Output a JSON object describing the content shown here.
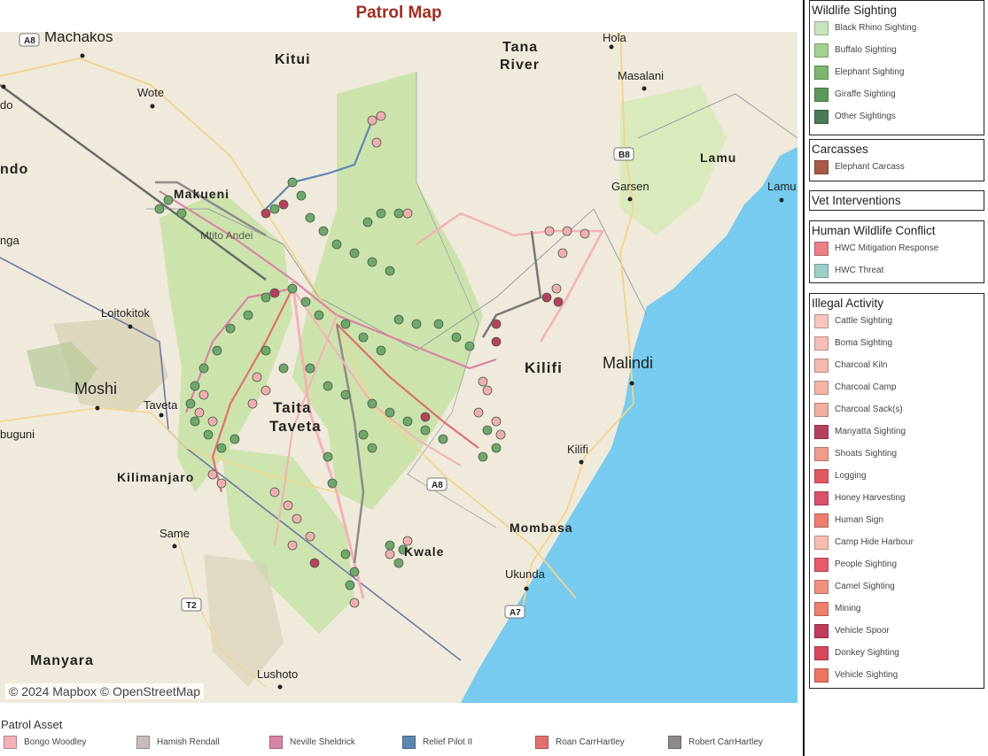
{
  "title": "Patrol Map",
  "attribution": "© 2024 Mapbox © OpenStreetMap",
  "map_labels": [
    {
      "text": "Machakos",
      "kind": "town"
    },
    {
      "text": "Kitui",
      "kind": "region"
    },
    {
      "text": "Tana",
      "kind": "region"
    },
    {
      "text": "River",
      "kind": "region"
    },
    {
      "text": "Hola",
      "kind": "town"
    },
    {
      "text": "Masalani",
      "kind": "town"
    },
    {
      "text": "Wote",
      "kind": "town"
    },
    {
      "text": "ndo",
      "kind": "region"
    },
    {
      "text": "do",
      "kind": "town"
    },
    {
      "text": "Makueni",
      "kind": "region"
    },
    {
      "text": "Mtito Andei",
      "kind": "town"
    },
    {
      "text": "Garsen",
      "kind": "town"
    },
    {
      "text": "Lamu",
      "kind": "region"
    },
    {
      "text": "Lamu",
      "kind": "town"
    },
    {
      "text": "nga",
      "kind": "town"
    },
    {
      "text": "Loitokitok",
      "kind": "town"
    },
    {
      "text": "Kilifi",
      "kind": "region"
    },
    {
      "text": "Malindi",
      "kind": "city"
    },
    {
      "text": "Moshi",
      "kind": "city"
    },
    {
      "text": "Taveta",
      "kind": "town"
    },
    {
      "text": "Taita",
      "kind": "region"
    },
    {
      "text": "Taveta",
      "kind": "region"
    },
    {
      "text": "buguni",
      "kind": "town"
    },
    {
      "text": "Kilimanjaro",
      "kind": "region"
    },
    {
      "text": "Kilifi",
      "kind": "town"
    },
    {
      "text": "Same",
      "kind": "town"
    },
    {
      "text": "Mombasa",
      "kind": "region"
    },
    {
      "text": "Kwale",
      "kind": "region"
    },
    {
      "text": "Ukunda",
      "kind": "town"
    },
    {
      "text": "Manyara",
      "kind": "region"
    },
    {
      "text": "Lushoto",
      "kind": "town"
    }
  ],
  "road_shields": [
    "A8",
    "B8",
    "A8",
    "T2",
    "A7"
  ],
  "legend": {
    "wildlife": {
      "title": "Wildlife Sighting",
      "items": [
        {
          "label": "Black Rhino Sighting",
          "color": "#c6e6bf"
        },
        {
          "label": "Buffalo Sighting",
          "color": "#a3d08f"
        },
        {
          "label": "Elephant Sighting",
          "color": "#7fb56c"
        },
        {
          "label": "Giraffe Sighting",
          "color": "#5c9a5c"
        },
        {
          "label": "Other Sightings",
          "color": "#4a7a58"
        }
      ]
    },
    "carcasses": {
      "title": "Carcasses",
      "items": [
        {
          "label": "Elephant Carcass",
          "color": "#a85a47"
        }
      ]
    },
    "vet": {
      "title": "Vet Interventions",
      "items": []
    },
    "hwc": {
      "title": "Human Wildlife Conflict",
      "items": [
        {
          "label": "HWC Mitigation Response",
          "color": "#ec7f86"
        },
        {
          "label": "HWC Threat",
          "color": "#9ccfc8"
        }
      ]
    },
    "illegal": {
      "title": "Illegal Activity",
      "items": [
        {
          "label": "Cattle Sighting",
          "color": "#f7c5bf"
        },
        {
          "label": "Boma Sighting",
          "color": "#f5bfb6"
        },
        {
          "label": "Charcoal Kiln",
          "color": "#f4b8ae"
        },
        {
          "label": "Charcoal Camp",
          "color": "#f3b4a6"
        },
        {
          "label": "Charcoal Sack(s)",
          "color": "#f2ae9e"
        },
        {
          "label": "Manyatta Sighting",
          "color": "#b8405e"
        },
        {
          "label": "Shoats Sighting",
          "color": "#f09a8c"
        },
        {
          "label": "Logging",
          "color": "#e05a66"
        },
        {
          "label": "Honey Harvesting",
          "color": "#d9506a"
        },
        {
          "label": "Human Sign",
          "color": "#ee7d70"
        },
        {
          "label": "Camp Hide Harbour",
          "color": "#f6bcb0"
        },
        {
          "label": "People Sighting",
          "color": "#e65a6a"
        },
        {
          "label": "Camel Sighting",
          "color": "#f2907f"
        },
        {
          "label": "Mining",
          "color": "#ef7f6e"
        },
        {
          "label": "Vehicle Spoor",
          "color": "#c23a5c"
        },
        {
          "label": "Donkey Sighting",
          "color": "#d8465e"
        },
        {
          "label": "Vehicle Sighting",
          "color": "#ee7462"
        }
      ]
    }
  },
  "patrol_asset": {
    "title": "Patrol Asset",
    "items": [
      {
        "label": "Bongo Woodley",
        "color": "#f5b1b5"
      },
      {
        "label": "Hamish Rendall",
        "color": "#c6bcbc"
      },
      {
        "label": "Neville Sheldrick",
        "color": "#d983a6"
      },
      {
        "label": "Relief Pilot II",
        "color": "#5f86b0"
      },
      {
        "label": "Roan CarrHartley",
        "color": "#e0706e"
      },
      {
        "label": "Robert CarrHartley",
        "color": "#8f8a8a"
      }
    ]
  }
}
